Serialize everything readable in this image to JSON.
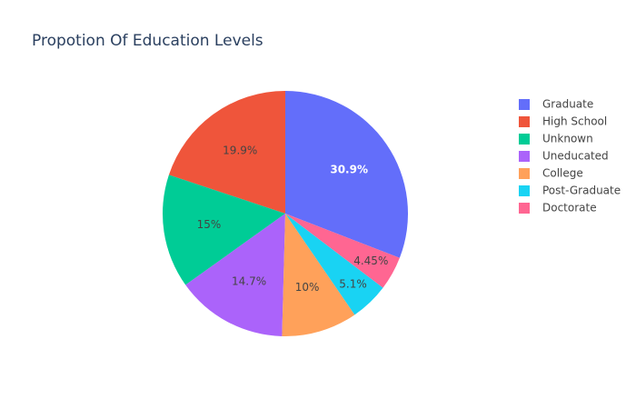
{
  "chart_data": {
    "type": "pie",
    "title": "Propotion Of Education Levels",
    "categories": [
      "Graduate",
      "High School",
      "Unknown",
      "Uneducated",
      "College",
      "Post-Graduate",
      "Doctorate"
    ],
    "values": [
      30.9,
      19.9,
      15,
      14.7,
      10,
      5.1,
      4.45
    ],
    "value_labels": [
      "30.9%",
      "19.9%",
      "15%",
      "14.7%",
      "10%",
      "5.1%",
      "4.45%"
    ],
    "colors": [
      "#636efa",
      "#ef553b",
      "#00cc96",
      "#ab63fa",
      "#ffa15a",
      "#19d3f3",
      "#ff6692"
    ]
  }
}
